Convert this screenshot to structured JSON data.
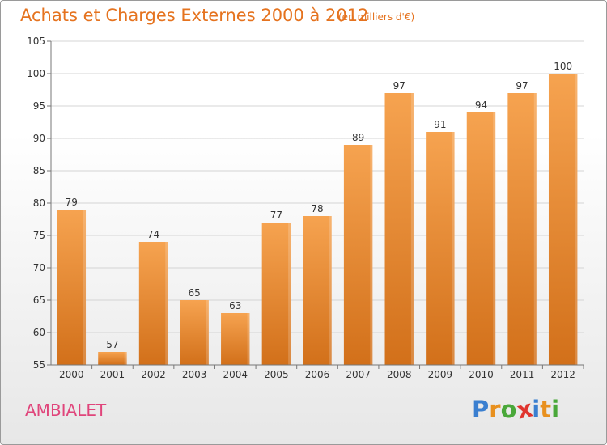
{
  "header": {
    "title": "Achats et Charges Externes 2000 à 2012",
    "subtitle": "(en milliers d'€)"
  },
  "footer": {
    "commune": "AMBIALET",
    "logo_letters": [
      {
        "char": "P",
        "color": "#3a7fd0"
      },
      {
        "char": "r",
        "color": "#e8901e"
      },
      {
        "char": "o",
        "color": "#4aa83a"
      },
      {
        "char": "x",
        "color": "#e0342e"
      },
      {
        "char": "i",
        "color": "#3a7fd0"
      },
      {
        "char": "t",
        "color": "#e8901e"
      },
      {
        "char": "i",
        "color": "#4aa83a"
      }
    ]
  },
  "colors": {
    "bar_top": "#f6a350",
    "bar_bottom": "#d2701a",
    "grid": "#d4d4d4",
    "axis": "#777777"
  },
  "chart_data": {
    "type": "bar",
    "title": "Achats et Charges Externes 2000 à 2012",
    "subtitle": "(en milliers d'€)",
    "xlabel": "",
    "ylabel": "",
    "categories": [
      "2000",
      "2001",
      "2002",
      "2003",
      "2004",
      "2005",
      "2006",
      "2007",
      "2008",
      "2009",
      "2010",
      "2011",
      "2012"
    ],
    "values": [
      79,
      57,
      74,
      65,
      63,
      77,
      78,
      89,
      97,
      91,
      94,
      97,
      100
    ],
    "ylim": [
      55,
      105
    ],
    "yticks": [
      55,
      60,
      65,
      70,
      75,
      80,
      85,
      90,
      95,
      100,
      105
    ],
    "grid": true,
    "legend": "none"
  }
}
